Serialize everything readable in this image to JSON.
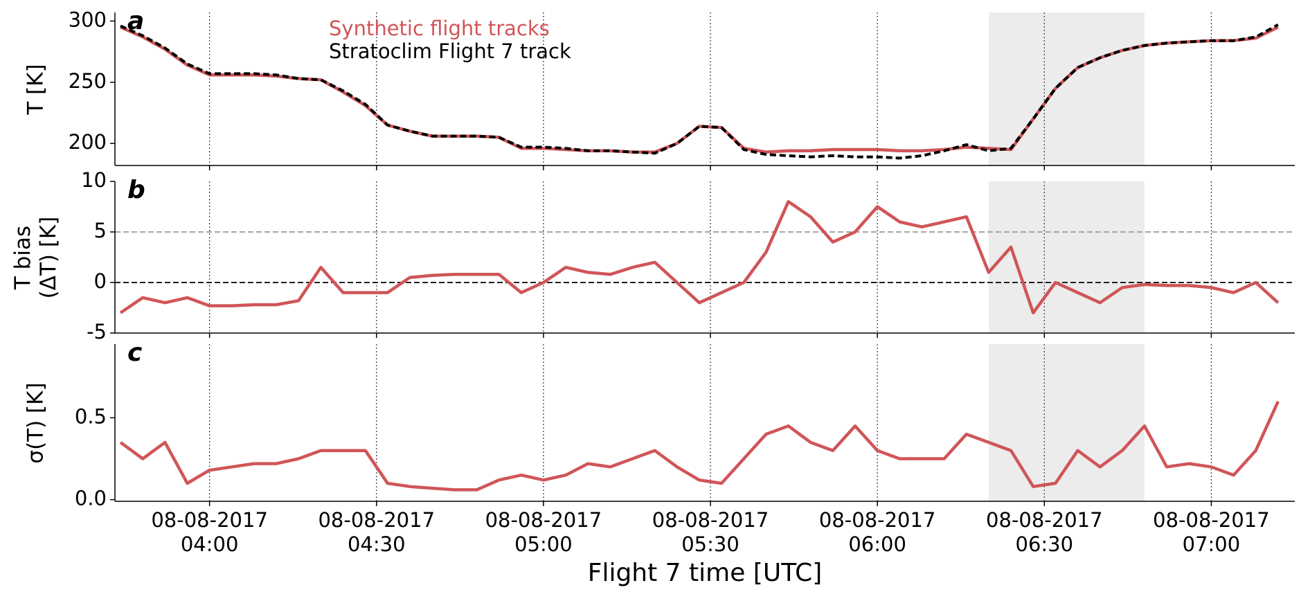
{
  "chart_data": [
    {
      "type": "line",
      "panel": "a",
      "ylabel": "T [K]",
      "x": [
        "08-08-2017 03:44",
        "08-08-2017 03:48",
        "08-08-2017 03:52",
        "08-08-2017 03:56",
        "08-08-2017 04:00",
        "08-08-2017 04:04",
        "08-08-2017 04:08",
        "08-08-2017 04:12",
        "08-08-2017 04:16",
        "08-08-2017 04:20",
        "08-08-2017 04:24",
        "08-08-2017 04:28",
        "08-08-2017 04:32",
        "08-08-2017 04:36",
        "08-08-2017 04:40",
        "08-08-2017 04:44",
        "08-08-2017 04:48",
        "08-08-2017 04:52",
        "08-08-2017 04:56",
        "08-08-2017 05:00",
        "08-08-2017 05:04",
        "08-08-2017 05:08",
        "08-08-2017 05:12",
        "08-08-2017 05:16",
        "08-08-2017 05:20",
        "08-08-2017 05:24",
        "08-08-2017 05:28",
        "08-08-2017 05:32",
        "08-08-2017 05:36",
        "08-08-2017 05:40",
        "08-08-2017 05:44",
        "08-08-2017 05:48",
        "08-08-2017 05:52",
        "08-08-2017 05:56",
        "08-08-2017 06:00",
        "08-08-2017 06:04",
        "08-08-2017 06:08",
        "08-08-2017 06:12",
        "08-08-2017 06:16",
        "08-08-2017 06:20",
        "08-08-2017 06:24",
        "08-08-2017 06:28",
        "08-08-2017 06:32",
        "08-08-2017 06:36",
        "08-08-2017 06:40",
        "08-08-2017 06:44",
        "08-08-2017 06:48",
        "08-08-2017 06:52",
        "08-08-2017 06:56",
        "08-08-2017 07:00",
        "08-08-2017 07:04",
        "08-08-2017 07:08",
        "08-08-2017 07:12"
      ],
      "series": [
        {
          "name": "Synthetic flight tracks",
          "color": "#d05558",
          "dashed": false,
          "values": [
            295,
            287,
            277,
            264,
            256,
            256,
            256,
            255,
            253,
            252,
            242,
            231,
            215,
            210,
            206,
            206,
            206,
            205,
            196,
            196,
            195,
            194,
            194,
            193,
            193,
            200,
            214,
            213,
            196,
            193,
            194,
            194,
            195,
            195,
            195,
            194,
            194,
            195,
            197,
            196,
            195,
            220,
            245,
            262,
            270,
            276,
            280,
            282,
            283,
            284,
            284,
            286,
            295
          ]
        },
        {
          "name": "Stratoclim Flight 7 track",
          "color": "#000000",
          "dashed": true,
          "values": [
            296,
            288,
            278,
            265,
            257,
            257,
            257,
            256,
            253,
            252,
            243,
            232,
            215,
            210,
            206,
            206,
            206,
            205,
            197,
            197,
            196,
            194,
            194,
            193,
            192,
            200,
            214,
            213,
            195,
            191,
            190,
            189,
            190,
            189,
            189,
            188,
            190,
            194,
            199,
            194,
            196,
            220,
            245,
            262,
            270,
            276,
            280,
            282,
            283,
            284,
            284,
            287,
            297
          ]
        }
      ],
      "ylim": [
        182,
        307
      ],
      "yticks": [
        200,
        250,
        300
      ]
    },
    {
      "type": "line",
      "panel": "b",
      "ylabel": "T bias\n(ΔT) [K]",
      "x": [
        "08-08-2017 03:44",
        "08-08-2017 03:48",
        "08-08-2017 03:52",
        "08-08-2017 03:56",
        "08-08-2017 04:00",
        "08-08-2017 04:04",
        "08-08-2017 04:08",
        "08-08-2017 04:12",
        "08-08-2017 04:16",
        "08-08-2017 04:20",
        "08-08-2017 04:24",
        "08-08-2017 04:28",
        "08-08-2017 04:32",
        "08-08-2017 04:36",
        "08-08-2017 04:40",
        "08-08-2017 04:44",
        "08-08-2017 04:48",
        "08-08-2017 04:52",
        "08-08-2017 04:56",
        "08-08-2017 05:00",
        "08-08-2017 05:04",
        "08-08-2017 05:08",
        "08-08-2017 05:12",
        "08-08-2017 05:16",
        "08-08-2017 05:20",
        "08-08-2017 05:24",
        "08-08-2017 05:28",
        "08-08-2017 05:32",
        "08-08-2017 05:36",
        "08-08-2017 05:40",
        "08-08-2017 05:44",
        "08-08-2017 05:48",
        "08-08-2017 05:52",
        "08-08-2017 05:56",
        "08-08-2017 06:00",
        "08-08-2017 06:04",
        "08-08-2017 06:08",
        "08-08-2017 06:12",
        "08-08-2017 06:16",
        "08-08-2017 06:20",
        "08-08-2017 06:24",
        "08-08-2017 06:28",
        "08-08-2017 06:32",
        "08-08-2017 06:36",
        "08-08-2017 06:40",
        "08-08-2017 06:44",
        "08-08-2017 06:48",
        "08-08-2017 06:52",
        "08-08-2017 06:56",
        "08-08-2017 07:00",
        "08-08-2017 07:04",
        "08-08-2017 07:08",
        "08-08-2017 07:12"
      ],
      "series": [
        {
          "color": "#d05558",
          "dashed": false,
          "values": [
            -3,
            -1.5,
            -2,
            -1.5,
            -2.3,
            -2.3,
            -2.2,
            -2.2,
            -1.8,
            1.5,
            -1,
            -1,
            -1,
            0.5,
            0.7,
            0.8,
            0.8,
            0.8,
            -1,
            0,
            1.5,
            1,
            0.8,
            1.5,
            2,
            0,
            -2,
            -1,
            0,
            3,
            8,
            6.5,
            4,
            5,
            7.5,
            6,
            5.5,
            6,
            6.5,
            1,
            3.5,
            -3,
            0,
            -1,
            -2,
            -0.5,
            -0.2,
            -0.3,
            -0.3,
            -0.5,
            -1,
            0,
            -2
          ]
        }
      ],
      "reference_lines": [
        {
          "value": 0,
          "color": "#000000"
        },
        {
          "value": 5,
          "color": "#999999"
        }
      ],
      "ylim": [
        -5,
        10
      ],
      "yticks": [
        -5,
        0,
        5,
        10
      ]
    },
    {
      "type": "line",
      "panel": "c",
      "ylabel": "σ(T) [K]",
      "xlabel": "Flight 7 time [UTC]",
      "x": [
        "08-08-2017 03:44",
        "08-08-2017 03:48",
        "08-08-2017 03:52",
        "08-08-2017 03:56",
        "08-08-2017 04:00",
        "08-08-2017 04:04",
        "08-08-2017 04:08",
        "08-08-2017 04:12",
        "08-08-2017 04:16",
        "08-08-2017 04:20",
        "08-08-2017 04:24",
        "08-08-2017 04:28",
        "08-08-2017 04:32",
        "08-08-2017 04:36",
        "08-08-2017 04:40",
        "08-08-2017 04:44",
        "08-08-2017 04:48",
        "08-08-2017 04:52",
        "08-08-2017 04:56",
        "08-08-2017 05:00",
        "08-08-2017 05:04",
        "08-08-2017 05:08",
        "08-08-2017 05:12",
        "08-08-2017 05:16",
        "08-08-2017 05:20",
        "08-08-2017 05:24",
        "08-08-2017 05:28",
        "08-08-2017 05:32",
        "08-08-2017 05:36",
        "08-08-2017 05:40",
        "08-08-2017 05:44",
        "08-08-2017 05:48",
        "08-08-2017 05:52",
        "08-08-2017 05:56",
        "08-08-2017 06:00",
        "08-08-2017 06:04",
        "08-08-2017 06:08",
        "08-08-2017 06:12",
        "08-08-2017 06:16",
        "08-08-2017 06:20",
        "08-08-2017 06:24",
        "08-08-2017 06:28",
        "08-08-2017 06:32",
        "08-08-2017 06:36",
        "08-08-2017 06:40",
        "08-08-2017 06:44",
        "08-08-2017 06:48",
        "08-08-2017 06:52",
        "08-08-2017 06:56",
        "08-08-2017 07:00",
        "08-08-2017 07:04",
        "08-08-2017 07:08",
        "08-08-2017 07:12"
      ],
      "series": [
        {
          "color": "#d05558",
          "dashed": false,
          "values": [
            0.35,
            0.25,
            0.35,
            0.1,
            0.18,
            0.2,
            0.22,
            0.22,
            0.25,
            0.3,
            0.3,
            0.3,
            0.1,
            0.08,
            0.07,
            0.06,
            0.06,
            0.12,
            0.15,
            0.12,
            0.15,
            0.22,
            0.2,
            0.25,
            0.3,
            0.2,
            0.12,
            0.1,
            0.25,
            0.4,
            0.45,
            0.35,
            0.3,
            0.45,
            0.3,
            0.25,
            0.25,
            0.25,
            0.4,
            0.35,
            0.3,
            0.08,
            0.1,
            0.3,
            0.2,
            0.3,
            0.45,
            0.2,
            0.22,
            0.2,
            0.15,
            0.3,
            0.6
          ]
        }
      ],
      "ylim": [
        -0.01,
        0.95
      ],
      "yticks": [
        {
          "value": 0,
          "label": "0.0"
        },
        {
          "value": 0.5,
          "label": "0.5"
        }
      ],
      "xlim": [
        "08-08-2017 03:43",
        "08-08-2017 07:15"
      ],
      "xticks": [
        {
          "value": "08-08-2017 04:00",
          "label": "08-08-2017\n04:00"
        },
        {
          "value": "08-08-2017 04:30",
          "label": "08-08-2017\n04:30"
        },
        {
          "value": "08-08-2017 05:00",
          "label": "08-08-2017\n05:00"
        },
        {
          "value": "08-08-2017 05:30",
          "label": "08-08-2017\n05:30"
        },
        {
          "value": "08-08-2017 06:00",
          "label": "08-08-2017\n06:00"
        },
        {
          "value": "08-08-2017 06:30",
          "label": "08-08-2017\n06:30"
        },
        {
          "value": "08-08-2017 07:00",
          "label": "08-08-2017\n07:00"
        }
      ],
      "highlight": [
        "08-08-2017 06:20",
        "08-08-2017 06:48"
      ]
    }
  ]
}
